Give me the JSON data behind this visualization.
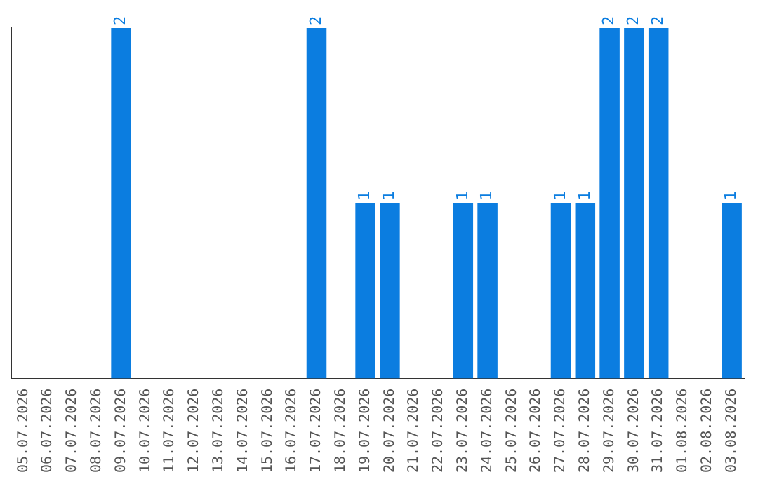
{
  "chart_data": {
    "type": "bar",
    "categories": [
      "05.07.2026",
      "06.07.2026",
      "07.07.2026",
      "08.07.2026",
      "09.07.2026",
      "10.07.2026",
      "11.07.2026",
      "12.07.2026",
      "13.07.2026",
      "14.07.2026",
      "15.07.2026",
      "16.07.2026",
      "17.07.2026",
      "18.07.2026",
      "19.07.2026",
      "20.07.2026",
      "21.07.2026",
      "22.07.2026",
      "23.07.2026",
      "24.07.2026",
      "25.07.2026",
      "26.07.2026",
      "27.07.2026",
      "28.07.2026",
      "29.07.2026",
      "30.07.2026",
      "31.07.2026",
      "01.08.2026",
      "02.08.2026",
      "03.08.2026"
    ],
    "values": [
      0,
      0,
      0,
      0,
      2,
      0,
      0,
      0,
      0,
      0,
      0,
      0,
      2,
      0,
      1,
      1,
      0,
      0,
      1,
      1,
      0,
      0,
      1,
      1,
      2,
      2,
      2,
      0,
      0,
      1
    ],
    "value_labels": [
      null,
      null,
      null,
      null,
      "2",
      null,
      null,
      null,
      null,
      null,
      null,
      null,
      "2",
      null,
      "1",
      "1",
      null,
      null,
      "1",
      "1",
      null,
      null,
      "1",
      "1",
      "2",
      "2",
      "2",
      null,
      null,
      "1"
    ],
    "color": "#0b7de0",
    "grid": false,
    "legend": false,
    "tick_labels": "x"
  }
}
